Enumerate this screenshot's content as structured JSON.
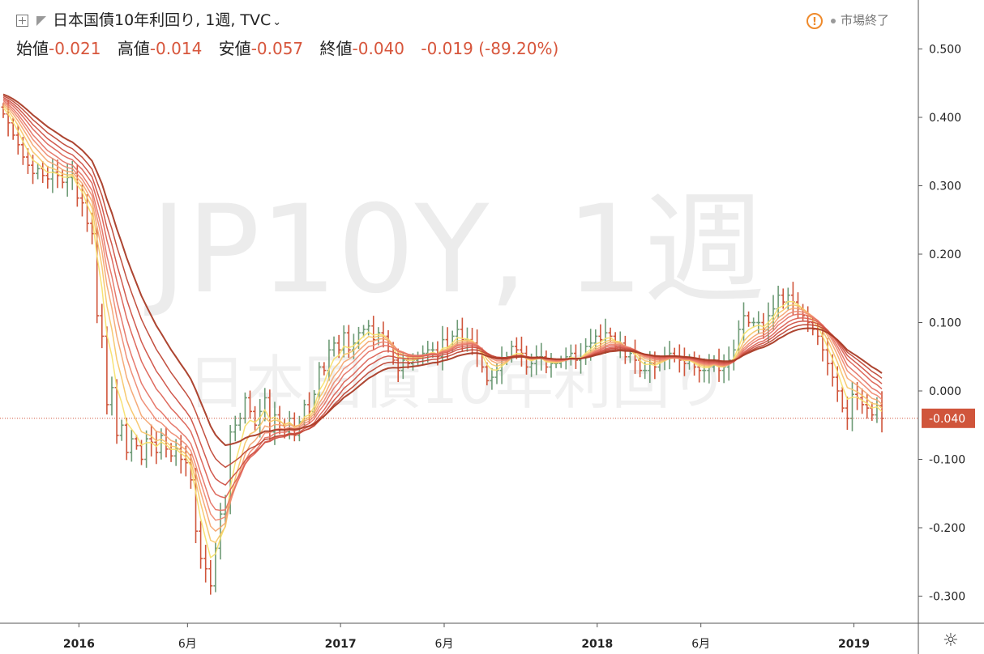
{
  "header": {
    "title": "日本国債10年利回り, 1週, TVC",
    "status_text": "市場終了"
  },
  "ohlc": {
    "open_label": "始値",
    "open_value": "-0.021",
    "high_label": "高値",
    "high_value": "-0.014",
    "low_label": "安値",
    "low_value": "-0.057",
    "close_label": "終値",
    "close_value": "-0.040",
    "change": "-0.019 (-89.20%)"
  },
  "watermark": {
    "main": "JP10Y, 1週",
    "sub": "日本国債10年利回り"
  },
  "colors": {
    "up": "#6e9b76",
    "down": "#d0553b",
    "last_price_bg": "#d0553b",
    "ribbon": [
      "#f7e06e",
      "#f7c66a",
      "#f4a672",
      "#ee8a72",
      "#e57365",
      "#dc6255",
      "#cf5144",
      "#bf4736",
      "#a93b26"
    ]
  },
  "chart_data": {
    "type": "ohlc",
    "symbol": "JP10Y",
    "interval": "1週",
    "y_axis": {
      "range": [
        -0.33,
        0.56
      ],
      "ticks": [
        "0.500",
        "0.400",
        "0.300",
        "0.200",
        "0.100",
        "0.000",
        "-0.100",
        "-0.200",
        "-0.300"
      ]
    },
    "x_axis": {
      "ticks": [
        {
          "label": "2016",
          "bar": 15,
          "bold": true
        },
        {
          "label": "6月",
          "bar": 37,
          "bold": false
        },
        {
          "label": "2017",
          "bar": 68,
          "bold": true
        },
        {
          "label": "6月",
          "bar": 89,
          "bold": false
        },
        {
          "label": "2018",
          "bar": 120,
          "bold": true
        },
        {
          "label": "6月",
          "bar": 141,
          "bold": false
        },
        {
          "label": "2019",
          "bar": 172,
          "bold": true
        }
      ]
    },
    "last_price": -0.04,
    "closes": [
      0.405,
      0.392,
      0.374,
      0.36,
      0.342,
      0.33,
      0.318,
      0.325,
      0.315,
      0.31,
      0.32,
      0.315,
      0.305,
      0.312,
      0.318,
      0.282,
      0.275,
      0.245,
      0.23,
      0.11,
      0.08,
      -0.02,
      0.005,
      -0.065,
      -0.05,
      -0.09,
      -0.07,
      -0.08,
      -0.1,
      -0.07,
      -0.075,
      -0.09,
      -0.065,
      -0.085,
      -0.095,
      -0.085,
      -0.1,
      -0.105,
      -0.13,
      -0.205,
      -0.245,
      -0.26,
      -0.285,
      -0.23,
      -0.18,
      -0.17,
      -0.06,
      -0.05,
      -0.04,
      -0.01,
      -0.03,
      -0.05,
      -0.03,
      -0.01,
      -0.06,
      -0.035,
      -0.05,
      -0.06,
      -0.04,
      -0.065,
      -0.045,
      -0.02,
      -0.03,
      -0.005,
      0.035,
      0.03,
      0.06,
      0.07,
      0.06,
      0.085,
      0.06,
      0.07,
      0.085,
      0.09,
      0.095,
      0.075,
      0.085,
      0.08,
      0.065,
      0.045,
      0.03,
      0.045,
      0.04,
      0.045,
      0.05,
      0.055,
      0.06,
      0.06,
      0.05,
      0.075,
      0.065,
      0.08,
      0.09,
      0.075,
      0.075,
      0.07,
      0.055,
      0.035,
      0.015,
      0.02,
      0.03,
      0.045,
      0.05,
      0.065,
      0.06,
      0.055,
      0.035,
      0.04,
      0.05,
      0.05,
      0.035,
      0.04,
      0.04,
      0.045,
      0.05,
      0.055,
      0.045,
      0.05,
      0.065,
      0.07,
      0.08,
      0.075,
      0.085,
      0.08,
      0.065,
      0.07,
      0.05,
      0.055,
      0.045,
      0.03,
      0.03,
      0.04,
      0.035,
      0.045,
      0.05,
      0.055,
      0.05,
      0.045,
      0.04,
      0.045,
      0.035,
      0.03,
      0.03,
      0.035,
      0.045,
      0.03,
      0.035,
      0.045,
      0.06,
      0.09,
      0.11,
      0.1,
      0.1,
      0.1,
      0.09,
      0.11,
      0.12,
      0.14,
      0.13,
      0.14,
      0.13,
      0.12,
      0.11,
      0.1,
      0.09,
      0.08,
      0.06,
      0.04,
      0.02,
      0.0,
      -0.025,
      -0.04,
      -0.005,
      -0.01,
      -0.02,
      -0.025,
      -0.035,
      -0.021,
      -0.04
    ]
  }
}
